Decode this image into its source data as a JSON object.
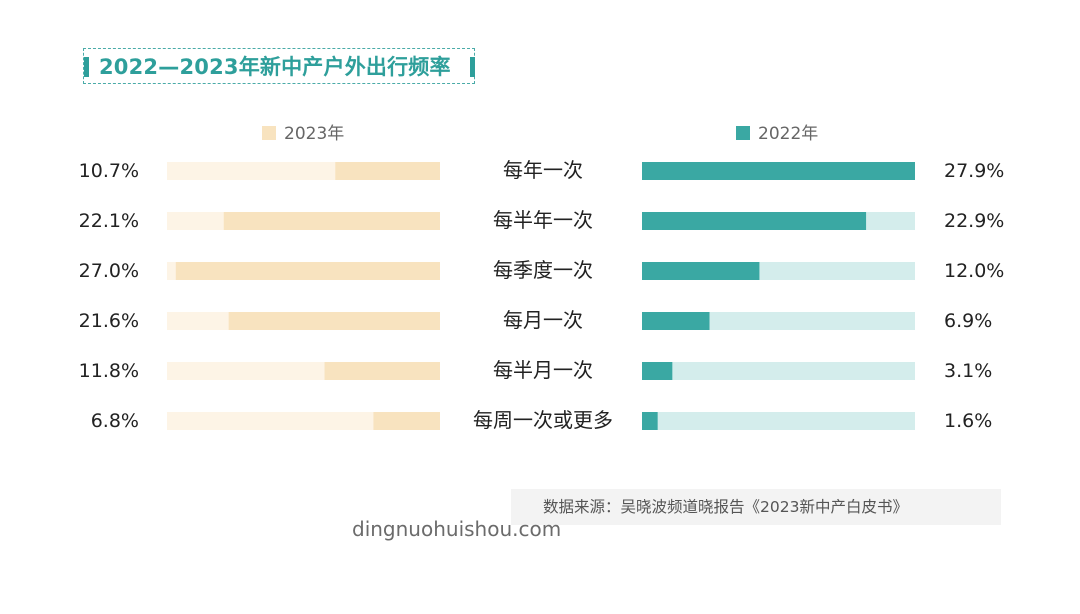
{
  "title": "2022—2023年新中产户外出行频率",
  "source": "数据来源：吴晓波频道晓报告《2023新中产白皮书》",
  "watermark": "dingnuohuishou.com",
  "colors": {
    "title": "#2e9f9b",
    "s2023_value": "#f8e3bf",
    "s2023_track": "#fdf4e6",
    "s2022_value": "#3aa8a3",
    "s2022_track": "#d4edec"
  },
  "chart_data": {
    "type": "bar",
    "orientation": "horizontal",
    "layout": "butterfly",
    "categories": [
      "每年一次",
      "每半年一次",
      "每季度一次",
      "每月一次",
      "每半月一次",
      "每周一次或更多"
    ],
    "series": [
      {
        "name": "2023年",
        "side": "left",
        "values": [
          10.7,
          22.1,
          27.0,
          21.6,
          11.8,
          6.8
        ],
        "labels": [
          "10.7%",
          "22.1%",
          "27.0%",
          "21.6%",
          "11.8%",
          "6.8%"
        ]
      },
      {
        "name": "2022年",
        "side": "right",
        "values": [
          27.9,
          22.9,
          12.0,
          6.9,
          3.1,
          1.6
        ],
        "labels": [
          "27.9%",
          "22.9%",
          "12.0%",
          "6.9%",
          "3.1%",
          "1.6%"
        ]
      }
    ],
    "xlim": [
      0,
      27.9
    ],
    "unit": "%",
    "legend": "top, one above each side"
  }
}
